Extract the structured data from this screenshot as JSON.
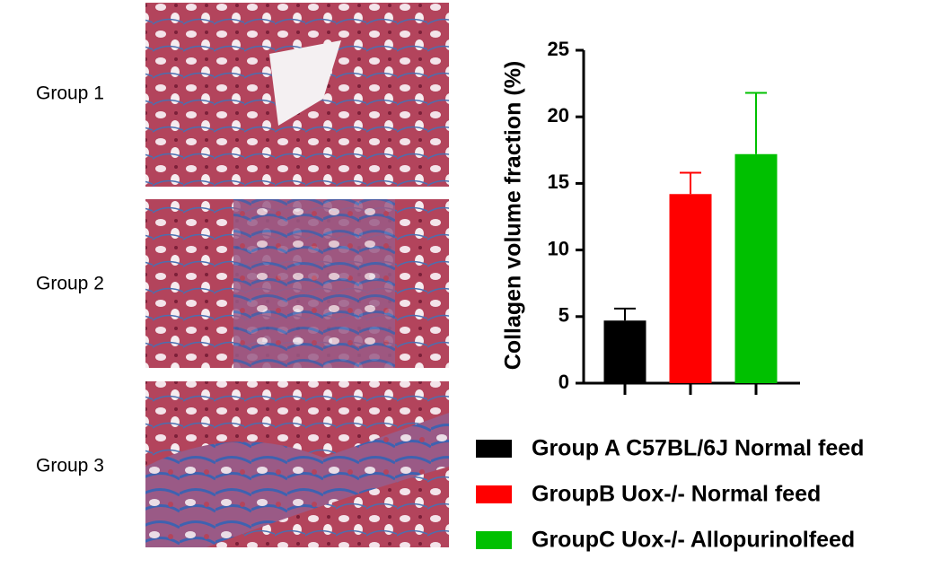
{
  "panels": [
    {
      "label": "Group 1"
    },
    {
      "label": "Group 2"
    },
    {
      "label": "Group 3"
    }
  ],
  "chart_data": {
    "type": "bar",
    "y_label": "Collagen volume fraction (%)",
    "ylim": [
      0,
      25
    ],
    "yticks": [
      0,
      5,
      10,
      15,
      20,
      25
    ],
    "series": [
      {
        "name": "Group A C57BL/6J Normal feed",
        "color": "#000000",
        "values": [
          4.7
        ],
        "errors": [
          0.9
        ]
      },
      {
        "name": "GroupB Uox-/- Normal feed",
        "color": "#ff0000",
        "values": [
          14.2
        ],
        "errors": [
          1.6
        ]
      },
      {
        "name": "GroupC Uox-/- Allopurinolfeed",
        "color": "#00c000",
        "values": [
          17.2
        ],
        "errors": [
          4.6
        ]
      }
    ]
  }
}
